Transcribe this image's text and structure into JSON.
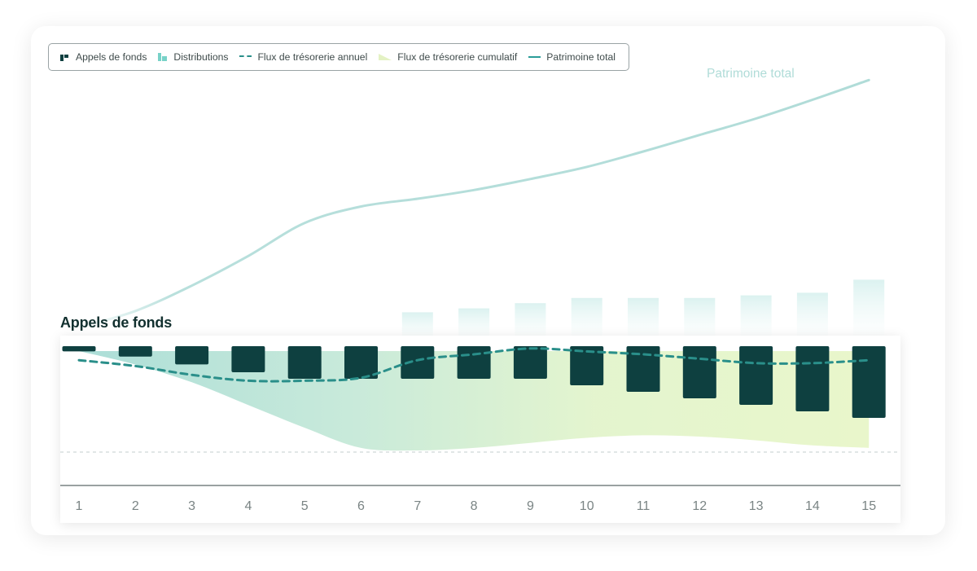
{
  "legend": {
    "calls": "Appels de fonds",
    "distributions": "Distributions",
    "annual_flow": "Flux de trésorerie annuel",
    "cumulative_flow": "Flux de trésorerie cumulatif",
    "total_wealth": "Patrimoine total"
  },
  "panel_title": "Appels de fonds",
  "line_label": "Patrimoine total",
  "colors": {
    "calls": "#0e4040",
    "distributions": "#d8f0ee",
    "annual_flow": "#2a8f8a",
    "cumulative_start": "#b4e0dc",
    "cumulative_end": "#e6f5c6",
    "total_wealth": "#b0dcd8",
    "axis": "#5e6969"
  },
  "chart_data": {
    "type": "bar",
    "categories": [
      "1",
      "2",
      "3",
      "4",
      "5",
      "6",
      "7",
      "8",
      "9",
      "10",
      "11",
      "12",
      "13",
      "14",
      "15"
    ],
    "series": [
      {
        "name": "Appels de fonds",
        "values": [
          -4,
          -8,
          -14,
          -20,
          -25,
          -25,
          -25,
          -25,
          -25,
          -30,
          -35,
          -40,
          -45,
          -50,
          -55
        ]
      },
      {
        "name": "Distributions",
        "values": [
          0,
          0,
          0,
          0,
          0,
          0,
          26,
          29,
          33,
          37,
          37,
          37,
          39,
          41,
          51
        ]
      },
      {
        "name": "Flux de trésorerie annuel",
        "values": [
          -4,
          -8,
          -14,
          -18,
          -18,
          -16,
          -4,
          0,
          4,
          2,
          0,
          -3,
          -6,
          -6,
          -4
        ]
      },
      {
        "name": "Flux de trésorerie cumulatif",
        "values": [
          -4,
          -12,
          -26,
          -44,
          -62,
          -78,
          -80,
          -78,
          -74,
          -70,
          -68,
          -69,
          -72,
          -76,
          -78
        ]
      },
      {
        "name": "Patrimoine total",
        "values": [
          0,
          15,
          38,
          65,
          95,
          110,
          117,
          125,
          135,
          146,
          160,
          175,
          190,
          207,
          225
        ]
      }
    ],
    "xlim": [
      1,
      15
    ],
    "ylim": [
      -100,
      250
    ],
    "baseline": 0,
    "grid": false,
    "legend_position": "top-left"
  }
}
